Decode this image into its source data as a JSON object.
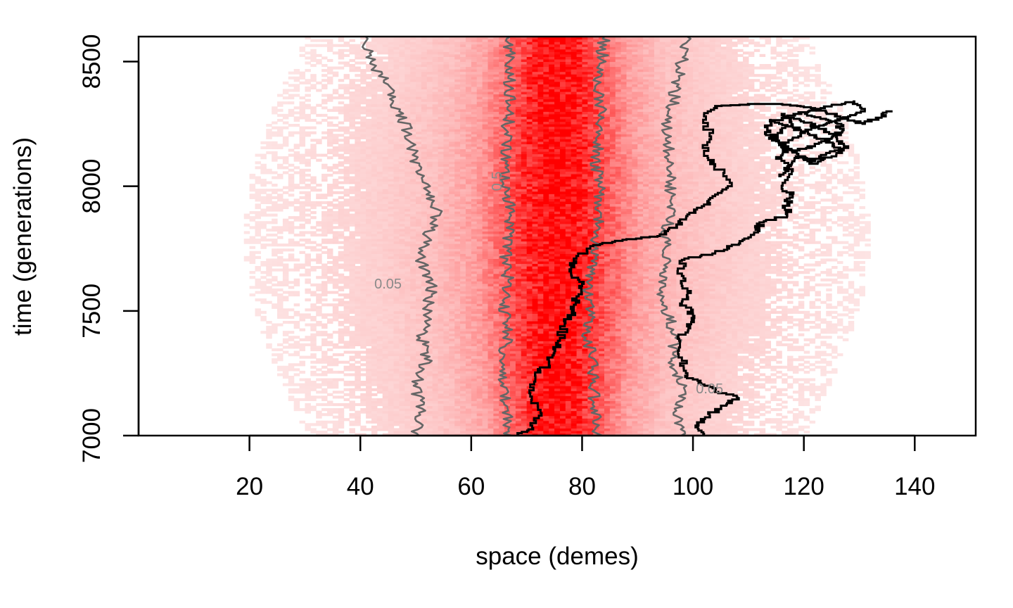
{
  "chart_data": {
    "type": "heatmap",
    "title": "",
    "xlabel": "space (demes)",
    "ylabel": "time (generations)",
    "xlim": [
      0,
      151
    ],
    "ylim": [
      7000,
      8600
    ],
    "x_ticks": [
      20,
      40,
      60,
      80,
      100,
      120,
      140
    ],
    "y_ticks": [
      7000,
      7500,
      8000,
      8500
    ],
    "grid": false,
    "legend": "none",
    "colors": {
      "heat_low": "#fde4e4",
      "heat_high": "#ff0000",
      "contour": "#666666",
      "lineage": "#000000",
      "contour_label": "#8a8a8a"
    },
    "heatmap": {
      "description_free": true,
      "center_x": 75,
      "profile": [
        {
          "distance": 0,
          "intensity": 1.0
        },
        {
          "distance": 4,
          "intensity": 0.85
        },
        {
          "distance": 8,
          "intensity": 0.55
        },
        {
          "distance": 12,
          "intensity": 0.3
        },
        {
          "distance": 18,
          "intensity": 0.16
        },
        {
          "distance": 26,
          "intensity": 0.09
        },
        {
          "distance": 34,
          "intensity": 0.05
        },
        {
          "distance": 45,
          "intensity": 0.0
        }
      ]
    },
    "contours": [
      {
        "level": "0.5",
        "label_x": 65.5,
        "label_y": 8020,
        "paths": [
          [
            [
              67,
              7000
            ],
            [
              66.5,
              7100
            ],
            [
              66,
              7200
            ],
            [
              65.8,
              7300
            ],
            [
              66.5,
              7400
            ],
            [
              66,
              7500
            ],
            [
              66.8,
              7600
            ],
            [
              66.2,
              7700
            ],
            [
              66.8,
              7800
            ],
            [
              67,
              7900
            ],
            [
              66.5,
              8000
            ],
            [
              66,
              8100
            ],
            [
              66.4,
              8200
            ],
            [
              66.8,
              8300
            ],
            [
              67,
              8400
            ],
            [
              66.8,
              8500
            ],
            [
              67,
              8600
            ]
          ],
          [
            [
              83,
              7000
            ],
            [
              82.5,
              7100
            ],
            [
              82,
              7200
            ],
            [
              82,
              7300
            ],
            [
              81,
              7400
            ],
            [
              81.5,
              7500
            ],
            [
              81,
              7600
            ],
            [
              82,
              7700
            ],
            [
              82.5,
              7800
            ],
            [
              83.5,
              7900
            ],
            [
              83,
              8000
            ],
            [
              82.5,
              8100
            ],
            [
              83,
              8200
            ],
            [
              83.5,
              8300
            ],
            [
              83,
              8400
            ],
            [
              83.5,
              8500
            ],
            [
              84,
              8600
            ]
          ]
        ]
      },
      {
        "level": "0.05",
        "label_x": 45,
        "label_y": 7590,
        "paths": [
          [
            [
              50,
              7000
            ],
            [
              51,
              7100
            ],
            [
              50,
              7200
            ],
            [
              52,
              7300
            ],
            [
              51,
              7400
            ],
            [
              52,
              7500
            ],
            [
              53,
              7600
            ],
            [
              51,
              7700
            ],
            [
              52,
              7800
            ],
            [
              54,
              7900
            ],
            [
              52,
              8000
            ],
            [
              50,
              8100
            ],
            [
              49,
              8200
            ],
            [
              47,
              8300
            ],
            [
              45,
              8400
            ],
            [
              42,
              8500
            ],
            [
              41,
              8600
            ]
          ],
          [
            [
              98,
              7000
            ],
            [
              97,
              7100
            ],
            [
              98,
              7200
            ],
            [
              96,
              7300
            ],
            [
              97,
              7400
            ],
            [
              95,
              7500
            ],
            [
              94,
              7600
            ],
            [
              95,
              7700
            ],
            [
              95,
              7800
            ],
            [
              96,
              7900
            ],
            [
              96,
              8000
            ],
            [
              96,
              8100
            ],
            [
              95,
              8200
            ],
            [
              96,
              8300
            ],
            [
              97,
              8400
            ],
            [
              98,
              8500
            ],
            [
              99,
              8600
            ]
          ]
        ]
      },
      {
        "level": "0.05",
        "label_x": 103,
        "label_y": 7170,
        "paths": []
      }
    ],
    "lineages": [
      {
        "points": [
          [
            68.5,
            7000
          ],
          [
            71,
            7030
          ],
          [
            72.5,
            7090
          ],
          [
            70.5,
            7170
          ],
          [
            71.5,
            7240
          ],
          [
            74,
            7280
          ],
          [
            75,
            7330
          ],
          [
            76,
            7380
          ],
          [
            77,
            7450
          ],
          [
            78.5,
            7500
          ],
          [
            79,
            7550
          ],
          [
            80,
            7600
          ],
          [
            78,
            7650
          ],
          [
            78.5,
            7700
          ],
          [
            82,
            7760
          ],
          [
            88,
            7785
          ],
          [
            94,
            7800
          ],
          [
            97,
            7840
          ],
          [
            99,
            7880
          ],
          [
            102,
            7920
          ],
          [
            104,
            7960
          ],
          [
            107,
            8000
          ],
          [
            104,
            8080
          ],
          [
            102,
            8130
          ],
          [
            103,
            8200
          ],
          [
            102,
            8280
          ],
          [
            104,
            8320
          ],
          [
            112,
            8330
          ],
          [
            116,
            8330
          ],
          [
            120,
            8320
          ],
          [
            124,
            8300
          ],
          [
            128,
            8270
          ],
          [
            131,
            8250
          ],
          [
            133,
            8270
          ],
          [
            136,
            8300
          ]
        ]
      },
      {
        "points": [
          [
            102,
            7000
          ],
          [
            101,
            7040
          ],
          [
            103,
            7080
          ],
          [
            106,
            7120
          ],
          [
            108,
            7150
          ],
          [
            104,
            7180
          ],
          [
            101,
            7210
          ],
          [
            99,
            7240
          ],
          [
            98,
            7300
          ],
          [
            97.5,
            7380
          ],
          [
            99.5,
            7430
          ],
          [
            100,
            7480
          ],
          [
            98,
            7530
          ],
          [
            99,
            7580
          ],
          [
            98,
            7640
          ],
          [
            98,
            7700
          ],
          [
            104,
            7730
          ],
          [
            107,
            7760
          ],
          [
            110,
            7790
          ],
          [
            112,
            7820
          ],
          [
            112,
            7850
          ],
          [
            117,
            7880
          ],
          [
            117,
            7930
          ],
          [
            118,
            7960
          ],
          [
            116,
            7990
          ],
          [
            118,
            8060
          ],
          [
            115,
            8110
          ],
          [
            117,
            8150
          ],
          [
            114,
            8200
          ],
          [
            118,
            8240
          ],
          [
            116,
            8290
          ],
          [
            120,
            8260
          ],
          [
            124,
            8230
          ],
          [
            126,
            8190
          ],
          [
            128,
            8160
          ],
          [
            125,
            8120
          ],
          [
            121,
            8090
          ],
          [
            119,
            8120
          ],
          [
            117,
            8080
          ],
          [
            116,
            8040
          ]
        ]
      },
      {
        "points": [
          [
            114,
            8270
          ],
          [
            118,
            8240
          ],
          [
            121,
            8210
          ],
          [
            124,
            8180
          ],
          [
            127,
            8150
          ],
          [
            124,
            8130
          ],
          [
            122,
            8100
          ],
          [
            119,
            8120
          ],
          [
            117,
            8150
          ],
          [
            115,
            8180
          ],
          [
            113,
            8210
          ],
          [
            114,
            8250
          ],
          [
            117,
            8280
          ],
          [
            121,
            8300
          ],
          [
            125,
            8320
          ],
          [
            129,
            8340
          ],
          [
            131,
            8310
          ],
          [
            128,
            8280
          ],
          [
            125,
            8260
          ],
          [
            122,
            8240
          ],
          [
            119,
            8200
          ],
          [
            116,
            8170
          ],
          [
            118,
            8140
          ],
          [
            122,
            8160
          ],
          [
            125,
            8190
          ],
          [
            127,
            8220
          ],
          [
            126,
            8250
          ],
          [
            123,
            8270
          ],
          [
            120,
            8290
          ]
        ]
      }
    ]
  }
}
